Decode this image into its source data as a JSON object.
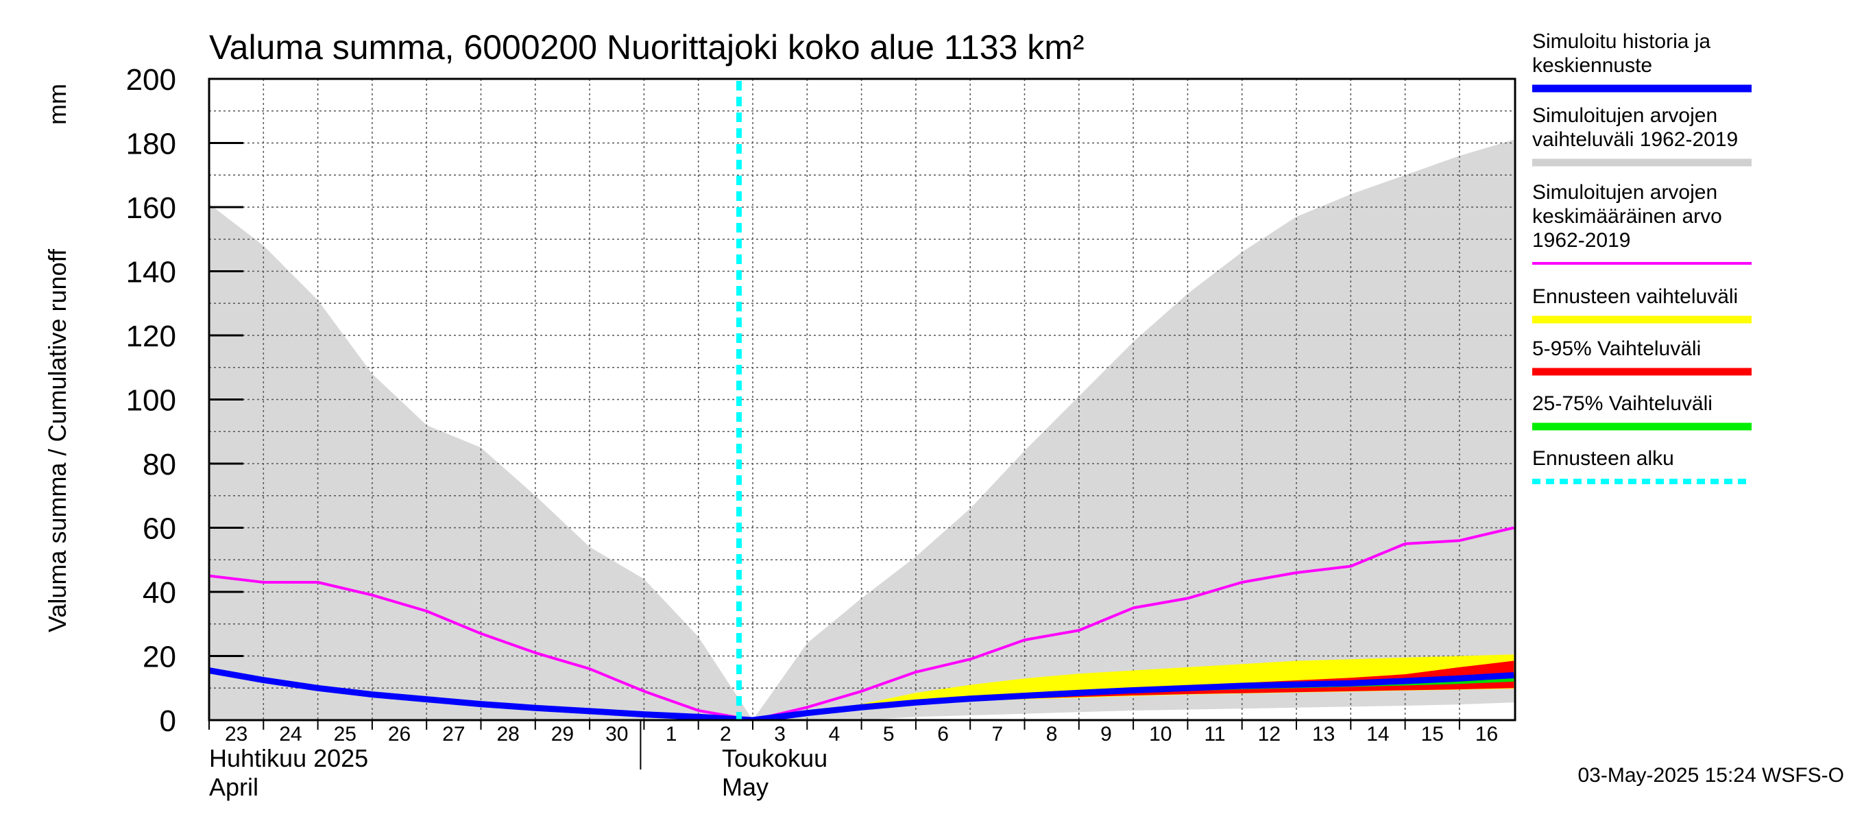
{
  "chart_data": {
    "type": "area",
    "title": "Valuma summa, 6000200 Nuorittajoki koko alue 1133 km²",
    "ylabel": "Valuma summa / Cumulative runoff",
    "yunit": "mm",
    "ylim": [
      0,
      200
    ],
    "yticks": [
      0,
      20,
      40,
      60,
      80,
      100,
      120,
      140,
      160,
      180,
      200
    ],
    "grid": true,
    "legend_position": "right",
    "x_days": [
      "23",
      "24",
      "25",
      "26",
      "27",
      "28",
      "29",
      "30",
      "1",
      "2",
      "3",
      "4",
      "5",
      "6",
      "7",
      "8",
      "9",
      "10",
      "11",
      "12",
      "13",
      "14",
      "15",
      "16"
    ],
    "month_labels": [
      {
        "fi": "Huhtikuu  2025",
        "en": "April"
      },
      {
        "fi": "Toukokuu",
        "en": "May"
      }
    ],
    "forecast_start": "3",
    "hist_range": {
      "name": "Simuloitujen arvojen vaihteluväli 1962-2019",
      "color": "#d8d8d8",
      "x": [
        "23",
        "24",
        "25",
        "26",
        "27",
        "28",
        "29",
        "30",
        "1",
        "2",
        "3",
        "4",
        "5",
        "6",
        "7",
        "8",
        "9",
        "10",
        "11",
        "12",
        "13",
        "14",
        "15",
        "16",
        "17"
      ],
      "upper": [
        161,
        148,
        131,
        108,
        92,
        85,
        70,
        54,
        44,
        26,
        0,
        24,
        38,
        51,
        66,
        84,
        101,
        118,
        133,
        146,
        157,
        164,
        170,
        176,
        181
      ],
      "lower": [
        0,
        0,
        0,
        0,
        0,
        0,
        0,
        0,
        0,
        0,
        0,
        0,
        0,
        1,
        1.5,
        2,
        2.5,
        3,
        3.3,
        3.6,
        3.9,
        4.2,
        4.5,
        4.9,
        5.5
      ]
    },
    "mean": {
      "name": "Simuloitujen arvojen keskimääräinen arvo 1962-2019",
      "color": "#ff00ff",
      "x": [
        "23",
        "24",
        "25",
        "26",
        "27",
        "28",
        "29",
        "30",
        "1",
        "2",
        "3",
        "4",
        "5",
        "6",
        "7",
        "8",
        "9",
        "10",
        "11",
        "12",
        "13",
        "14",
        "15",
        "16",
        "17"
      ],
      "values": [
        45,
        43,
        43,
        39,
        34,
        27,
        21,
        16,
        9,
        3,
        0,
        4,
        9,
        15,
        19,
        25,
        28,
        35,
        38,
        43,
        46,
        48,
        55,
        56,
        60
      ]
    },
    "forecast_range": {
      "name": "Ennusteen vaihteluväli",
      "color": "#ffff00",
      "x": [
        "3",
        "4",
        "5",
        "6",
        "7",
        "8",
        "9",
        "10",
        "11",
        "12",
        "13",
        "14",
        "15",
        "16",
        "17"
      ],
      "upper": [
        0,
        2.5,
        5,
        8.5,
        11,
        13,
        14.5,
        15.5,
        16.5,
        17.5,
        18.5,
        19,
        19.5,
        20,
        20.5
      ],
      "lower": [
        0,
        2,
        3.5,
        5,
        6,
        6.5,
        7,
        7.5,
        8,
        8.3,
        8.6,
        8.9,
        9.2,
        9.5,
        9.8
      ]
    },
    "p5_95": {
      "name": "5-95% Vaihteluväli",
      "color": "#ff0000",
      "x": [
        "3",
        "4",
        "5",
        "6",
        "7",
        "8",
        "9",
        "10",
        "11",
        "12",
        "13",
        "14",
        "15",
        "16",
        "17"
      ],
      "upper": [
        0,
        2.4,
        4.3,
        6,
        7.2,
        8.2,
        9.1,
        10,
        10.8,
        11.6,
        12.4,
        13.2,
        14.3,
        16.5,
        18.5
      ],
      "lower": [
        0,
        2.1,
        3.6,
        5.1,
        6.1,
        6.7,
        7.2,
        7.7,
        8.1,
        8.4,
        8.7,
        9,
        9.3,
        9.6,
        10
      ]
    },
    "p25_75": {
      "name": "25-75% Vaihteluväli",
      "color": "#00dd00",
      "x": [
        "3",
        "4",
        "5",
        "6",
        "7",
        "8",
        "9",
        "10",
        "11",
        "12",
        "13",
        "14",
        "15",
        "16",
        "17"
      ],
      "upper": [
        0,
        2.3,
        4.1,
        5.7,
        6.9,
        7.9,
        8.8,
        9.6,
        10.4,
        11.1,
        11.6,
        12.1,
        12.8,
        13.6,
        14.6
      ],
      "lower": [
        0,
        2.2,
        3.8,
        5.3,
        6.4,
        7.2,
        7.9,
        8.5,
        9.1,
        9.6,
        10,
        10.4,
        10.8,
        11.3,
        12
      ]
    },
    "sim": {
      "name": "Simuloitu historia ja keskiennuste",
      "color": "#0000ff",
      "x": [
        "23",
        "24",
        "25",
        "26",
        "27",
        "28",
        "29",
        "30",
        "1",
        "2",
        "3",
        "4",
        "5",
        "6",
        "7",
        "8",
        "9",
        "10",
        "11",
        "12",
        "13",
        "14",
        "15",
        "16",
        "17"
      ],
      "values": [
        15.5,
        12.5,
        10,
        8,
        6.5,
        5,
        3.8,
        2.8,
        1.8,
        1,
        0,
        2.2,
        4,
        5.5,
        6.7,
        7.6,
        8.5,
        9.3,
        10,
        10.7,
        11.1,
        11.5,
        12.2,
        13,
        14
      ]
    },
    "forecast_start_name": "Ennusteen alku",
    "forecast_start_color": "#00ffff",
    "legend": [
      {
        "label_lines": [
          "Simuloitu historia ja",
          "keskiennuste"
        ],
        "color": "#0000ff",
        "style": "line"
      },
      {
        "label_lines": [
          "Simuloitujen arvojen",
          "vaihteluväli 1962-2019"
        ],
        "color": "#d0d0d0",
        "style": "line"
      },
      {
        "label_lines": [
          "Simuloitujen arvojen",
          "keskimääräinen arvo",
          "   1962-2019"
        ],
        "color": "#ff00ff",
        "style": "thin"
      },
      {
        "label_lines": [
          "Ennusteen vaihteluväli"
        ],
        "color": "#ffff00",
        "style": "line"
      },
      {
        "label_lines": [
          "5-95% Vaihteluväli"
        ],
        "color": "#ff0000",
        "style": "line"
      },
      {
        "label_lines": [
          "25-75% Vaihteluväli"
        ],
        "color": "#00ee00",
        "style": "line"
      },
      {
        "label_lines": [
          "Ennusteen alku"
        ],
        "color": "#00ffff",
        "style": "dashed"
      }
    ],
    "footer": "03-May-2025 15:24 WSFS-O"
  }
}
